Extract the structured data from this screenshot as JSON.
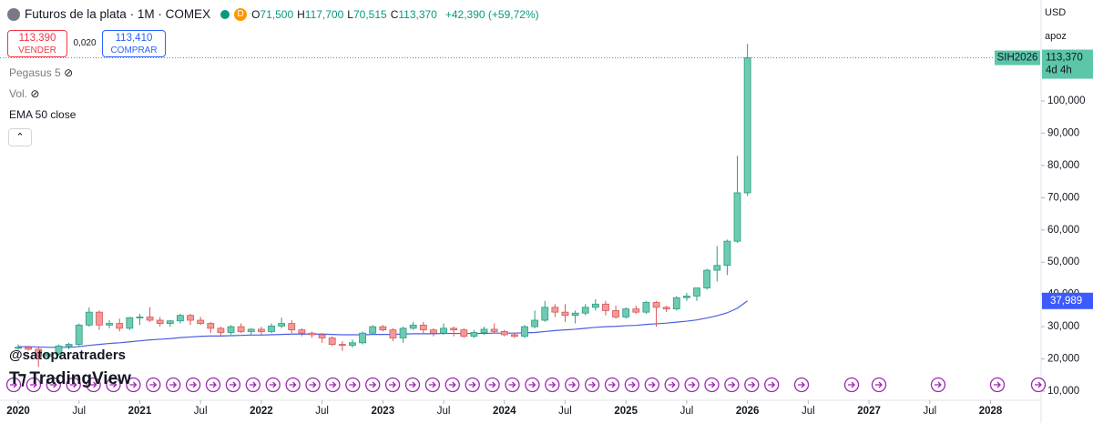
{
  "header": {
    "title": "Futuros de la plata · 1M · COMEX",
    "badge": "D",
    "ohlc": [
      {
        "key": "O",
        "value": "71,500"
      },
      {
        "key": "H",
        "value": "117,700"
      },
      {
        "key": "L",
        "value": "70,515"
      },
      {
        "key": "C",
        "value": "113,370"
      }
    ],
    "change": "+42,390 (+59,72%)"
  },
  "trade": {
    "sell_price": "113,390",
    "sell_label": "VENDER",
    "spread": "0,020",
    "buy_price": "113,410",
    "buy_label": "COMPRAR"
  },
  "indicators": [
    "Pegasus 5",
    "Vol.",
    "EMA 50 close"
  ],
  "watermark": {
    "handle": "@satoparatraders",
    "brand": "TradingView"
  },
  "axis_controls": {
    "currency": "USD",
    "scale": "apoz"
  },
  "chart_data": {
    "type": "candlestick",
    "x_labels": [
      "2020",
      "Jul",
      "2021",
      "Jul",
      "2022",
      "Jul",
      "2023",
      "Jul",
      "2024",
      "Jul",
      "2025",
      "Jul",
      "2026",
      "Jul",
      "2027",
      "Jul",
      "2028"
    ],
    "open": [
      23.5,
      23.6,
      23.0,
      20.8,
      21.5,
      24.0,
      24.5,
      30.5,
      34.5,
      30.5,
      31.0,
      29.5,
      32.8,
      33.0,
      32.0,
      31.0,
      31.8,
      33.5,
      32.0,
      31.0,
      29.5,
      28.2,
      30.0,
      28.5,
      29.2,
      28.5,
      30.2,
      31.0,
      29.0,
      28.0,
      27.5,
      26.5,
      24.5,
      24.2,
      25.0,
      28.0,
      30.0,
      29.0,
      26.5,
      29.5,
      30.5,
      29.0,
      28.0,
      29.5,
      29.0,
      27.0,
      28.2,
      29.2,
      28.5,
      27.5,
      27.0,
      30.0,
      32.0,
      36.0,
      34.5,
      33.5,
      34.2,
      36.0,
      37.0,
      35.0,
      33.0,
      35.5,
      34.5,
      37.5,
      36.0,
      35.5,
      39.0,
      39.5,
      42.0,
      47.5,
      49.0,
      56.5,
      71.5
    ],
    "high": [
      24.5,
      24.0,
      23.5,
      22.0,
      24.5,
      25.0,
      31.0,
      36.0,
      35.0,
      32.0,
      32.5,
      33.0,
      34.0,
      36.0,
      33.0,
      32.0,
      34.0,
      34.0,
      33.0,
      31.5,
      30.0,
      30.5,
      31.0,
      29.5,
      30.0,
      31.0,
      32.8,
      32.0,
      29.5,
      28.5,
      28.0,
      27.0,
      25.5,
      26.0,
      28.5,
      30.5,
      30.5,
      29.5,
      30.0,
      31.5,
      31.5,
      29.5,
      31.0,
      30.0,
      29.5,
      29.0,
      30.0,
      31.0,
      29.0,
      28.0,
      30.5,
      35.0,
      38.0,
      37.0,
      37.0,
      35.0,
      37.0,
      38.5,
      38.0,
      36.5,
      36.0,
      36.5,
      38.0,
      38.0,
      36.5,
      39.5,
      40.5,
      42.0,
      48.0,
      55.0,
      57.0,
      83.0,
      117.7
    ],
    "low": [
      22.8,
      22.5,
      17.5,
      20.0,
      21.0,
      23.0,
      24.0,
      30.0,
      29.0,
      29.5,
      28.5,
      29.0,
      30.5,
      31.5,
      30.0,
      30.0,
      31.0,
      30.5,
      30.5,
      28.0,
      27.0,
      27.5,
      28.0,
      27.5,
      27.5,
      28.0,
      29.5,
      28.0,
      27.0,
      26.5,
      25.0,
      24.0,
      22.5,
      23.5,
      24.5,
      27.5,
      28.5,
      25.5,
      25.0,
      29.0,
      28.0,
      27.0,
      27.5,
      27.0,
      26.5,
      26.5,
      27.5,
      28.0,
      27.0,
      26.5,
      26.5,
      29.5,
      31.5,
      33.0,
      31.5,
      31.0,
      33.5,
      35.0,
      33.5,
      32.5,
      32.5,
      34.0,
      34.0,
      30.0,
      34.5,
      35.0,
      38.0,
      38.0,
      41.5,
      44.0,
      46.0,
      56.0,
      70.515
    ],
    "close": [
      23.6,
      23.0,
      20.8,
      21.5,
      24.0,
      24.5,
      30.5,
      34.5,
      30.5,
      31.0,
      29.5,
      32.8,
      33.0,
      32.0,
      31.0,
      31.8,
      33.5,
      32.0,
      31.0,
      29.5,
      28.2,
      30.0,
      28.5,
      29.2,
      28.5,
      30.2,
      31.0,
      29.0,
      28.0,
      27.5,
      26.5,
      24.5,
      24.2,
      25.0,
      28.0,
      30.0,
      29.0,
      26.5,
      29.5,
      30.5,
      29.0,
      28.0,
      29.5,
      29.0,
      27.0,
      28.2,
      29.2,
      28.5,
      27.5,
      27.0,
      30.0,
      32.0,
      36.0,
      34.5,
      33.5,
      34.2,
      36.0,
      37.0,
      35.0,
      33.0,
      35.5,
      34.5,
      37.5,
      36.0,
      35.5,
      39.0,
      39.5,
      42.0,
      47.5,
      49.0,
      56.5,
      71.5,
      113.37
    ],
    "up_color": "#6ccbb2",
    "down_color": "#f39a9a",
    "ema": {
      "color": "#4a5fe0",
      "values": [
        23.8,
        23.8,
        23.7,
        23.6,
        23.6,
        23.6,
        23.8,
        24.2,
        24.5,
        24.8,
        25.0,
        25.3,
        25.6,
        25.9,
        26.1,
        26.3,
        26.6,
        26.8,
        27.0,
        27.1,
        27.1,
        27.2,
        27.3,
        27.4,
        27.4,
        27.5,
        27.6,
        27.7,
        27.7,
        27.7,
        27.7,
        27.6,
        27.5,
        27.5,
        27.5,
        27.6,
        27.6,
        27.6,
        27.7,
        27.8,
        27.8,
        27.8,
        27.9,
        27.9,
        27.9,
        27.9,
        27.9,
        28.0,
        28.0,
        28.0,
        28.1,
        28.2,
        28.5,
        28.8,
        29.0,
        29.2,
        29.5,
        29.8,
        30.0,
        30.1,
        30.3,
        30.4,
        30.7,
        30.9,
        31.1,
        31.4,
        31.7,
        32.1,
        32.7,
        33.4,
        34.3,
        35.7,
        37.989
      ]
    },
    "ema_badge": {
      "value": 37.989,
      "label": "37,989"
    },
    "price_badge": {
      "value": 113.37,
      "label": "113,370",
      "countdown": "4d 4h",
      "symbol": "SIH2026"
    },
    "ylim": [
      7.18,
      131.3
    ],
    "yticks": [
      {
        "value": 10,
        "label": "10,000"
      },
      {
        "value": 20,
        "label": "20,000"
      },
      {
        "value": 30,
        "label": "30,000"
      },
      {
        "value": 40,
        "label": "40,000"
      },
      {
        "value": 50,
        "label": "50,000"
      },
      {
        "value": 60,
        "label": "60,000"
      },
      {
        "value": 70,
        "label": "70,000"
      },
      {
        "value": 80,
        "label": "80,000"
      },
      {
        "value": 90,
        "label": "90,000"
      },
      {
        "value": 100,
        "label": "100,000"
      }
    ],
    "grid": false
  }
}
